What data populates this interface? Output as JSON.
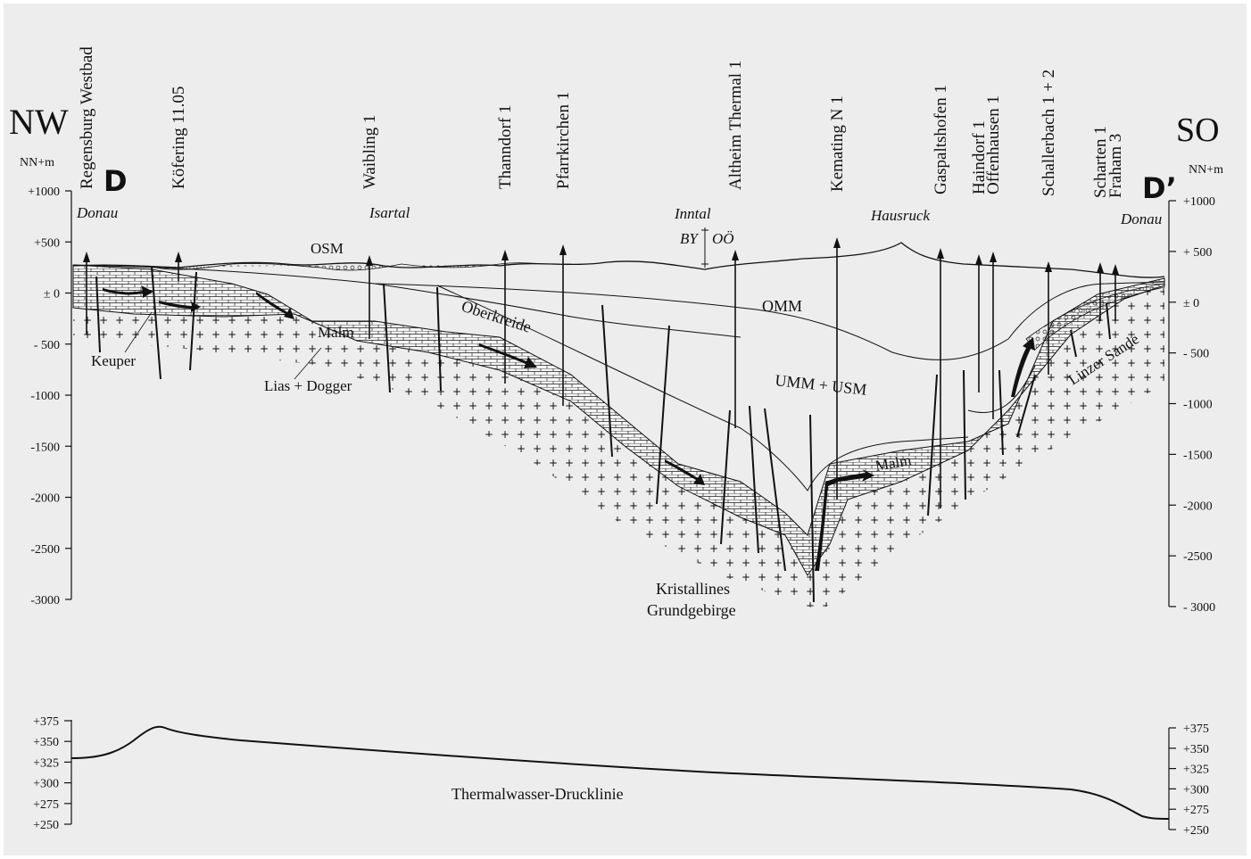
{
  "direction": {
    "left": "NW",
    "right": "SO"
  },
  "section": {
    "start": "D",
    "end": "D’"
  },
  "axis_unit": {
    "left": "NN+m",
    "right": "NN+m"
  },
  "elevation_axis": {
    "left_ticks": [
      "+1000",
      "+500",
      "± 0",
      "- 500",
      "-1000",
      "-1500",
      "-2000",
      "-2500",
      "-3000"
    ],
    "right_ticks": [
      "+1000",
      "+ 500",
      "± 0",
      "- 500",
      "-1000",
      "-1500",
      "-2000",
      "-2500",
      "- 3000"
    ],
    "values": [
      1000,
      500,
      0,
      -500,
      -1000,
      -1500,
      -2000,
      -2500,
      -3000
    ]
  },
  "wells": [
    "Regensburg Westbad",
    "Köfering 11.05",
    "Waibling 1",
    "Thanndorf 1",
    "Pfarrkirchen 1",
    "Altheim Thermal 1",
    "Kemating N 1",
    "Gaspaltshofen 1",
    "Haindorf 1",
    "Offenhausen 1",
    "Schallerbach 1 + 2",
    "Scharten 1",
    "Fraham 3"
  ],
  "places": {
    "donau_left": "Donau",
    "isartal": "Isartal",
    "inntal": "Inntal",
    "hausruck": "Hausruck",
    "donau_right": "Donau",
    "border": "BY",
    "border2": "OÖ"
  },
  "units": {
    "osm": "OSM",
    "omm": "OMM",
    "umm_usm": "UMM + USM",
    "oberkreide": "Oberkreide",
    "malm_left": "Malm",
    "malm_right": "Malm",
    "keuper": "Keuper",
    "lias_dogger": "Lias + Dogger",
    "linzer_sande": "Linzer Sande",
    "kristallin_1": "Kristallines",
    "kristallin_2": "Grundgebirge"
  },
  "pressure_axis": {
    "left_ticks": [
      "+375",
      "+350",
      "+325",
      "+300",
      "+275",
      "+250"
    ],
    "right_ticks": [
      "+375",
      "+350",
      "+325",
      "+300",
      "+275",
      "+250"
    ],
    "values": [
      375,
      350,
      325,
      300,
      275,
      250
    ],
    "label": "Thermalwasser-Drucklinie"
  },
  "colors": {
    "background": "#ededed",
    "ink": "#111111"
  }
}
